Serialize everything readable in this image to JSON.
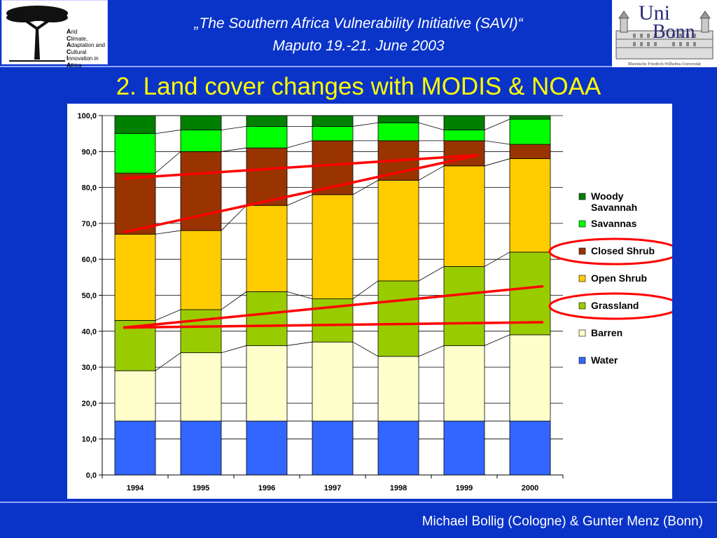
{
  "header": {
    "line1": "„The Southern Africa Vulnerability Initiative (SAVI)“",
    "line2": "Maputo 19.-21. June 2003"
  },
  "logo_left": {
    "acronym_letters": [
      "A",
      "C",
      "A",
      "C",
      "I",
      "A"
    ],
    "acronym_rest": [
      "rid",
      "limate,",
      "daptation and",
      "ultural",
      "nnovation in",
      "frica"
    ],
    "icon": "acacia-tree-icon"
  },
  "logo_right": {
    "text_line1": "Uni",
    "text_line2": "Bonn",
    "caption": "Rheinische Friedrich-Wilhelms-Universität",
    "icon": "university-building-icon"
  },
  "title": "2. Land cover changes with MODIS & NOAA",
  "footer": "Michael Bollig (Cologne) & Gunter Menz (Bonn)",
  "chart_data": {
    "type": "bar",
    "stacked": true,
    "categories": [
      "1994",
      "1995",
      "1996",
      "1997",
      "1998",
      "1999",
      "2000"
    ],
    "ylim": [
      0,
      100
    ],
    "yticks": [
      "0,0",
      "10,0",
      "20,0",
      "30,0",
      "40,0",
      "50,0",
      "60,0",
      "70,0",
      "80,0",
      "90,0",
      "100,0"
    ],
    "grid": true,
    "legend_position": "right",
    "series": [
      {
        "name": "Water",
        "color": "#3366ff",
        "values": [
          15,
          15,
          15,
          15,
          15,
          15,
          15
        ]
      },
      {
        "name": "Barren",
        "color": "#ffffcc",
        "values": [
          14,
          19,
          21,
          22,
          18,
          21,
          24
        ]
      },
      {
        "name": "Grassland",
        "color": "#99cc00",
        "values": [
          14,
          12,
          15,
          12,
          21,
          22,
          23
        ]
      },
      {
        "name": "Open Shrub",
        "color": "#ffcc00",
        "values": [
          24,
          22,
          24,
          29,
          28,
          28,
          26
        ]
      },
      {
        "name": "Closed Shrub",
        "color": "#993300",
        "values": [
          17,
          22,
          16,
          15,
          11,
          7,
          4
        ]
      },
      {
        "name": "Savannas",
        "color": "#00ff00",
        "values": [
          11,
          6,
          6,
          4,
          5,
          3,
          7
        ]
      },
      {
        "name": "Woody Savannah",
        "color": "#008000",
        "values": [
          5,
          4,
          3,
          3,
          2,
          4,
          1
        ]
      }
    ],
    "legend_order": [
      "Woody Savannah",
      "Savannas",
      "Closed Shrub",
      "Open Shrub",
      "Grassland",
      "Barren",
      "Water"
    ],
    "legend_labels": {
      "Woody Savannah": [
        "Woody",
        "Savannah"
      ],
      "Savannas": [
        "Savannas"
      ],
      "Closed Shrub": [
        "Closed Shrub"
      ],
      "Open Shrub": [
        "Open Shrub"
      ],
      "Grassland": [
        "Grassland"
      ],
      "Barren": [
        "Barren"
      ],
      "Water": [
        "Water"
      ]
    },
    "annotations": {
      "color": "#ff0000",
      "circled_legend_entries": [
        "Closed Shrub",
        "Grassland"
      ],
      "trend_lines": [
        {
          "from": {
            "x": "1994",
            "y": 82.5
          },
          "to": {
            "x": "1999",
            "y": 89
          }
        },
        {
          "from": {
            "x": "1994",
            "y": 67.5
          },
          "to": {
            "x": "1999",
            "y": 89
          }
        },
        {
          "from": {
            "x": "1994",
            "y": 41
          },
          "to": {
            "x": "2000",
            "y": 52.5
          }
        },
        {
          "from": {
            "x": "1994",
            "y": 41
          },
          "to": {
            "x": "2000",
            "y": 42.5
          }
        }
      ]
    }
  }
}
